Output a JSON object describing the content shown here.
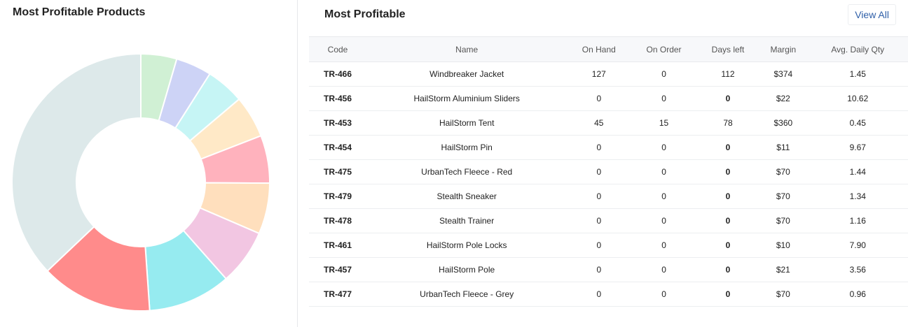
{
  "left": {
    "title": "Most Profitable Products"
  },
  "chart_data": {
    "type": "pie",
    "title": "Most Profitable Products",
    "donut": true,
    "slices": [
      {
        "value": 4.5,
        "color": "#d0f0d4"
      },
      {
        "value": 4.5,
        "color": "#cdd3f6"
      },
      {
        "value": 4.8,
        "color": "#c6f5f5"
      },
      {
        "value": 5.3,
        "color": "#ffe9c7"
      },
      {
        "value": 6.0,
        "color": "#ffb2bd"
      },
      {
        "value": 6.4,
        "color": "#ffdfbd"
      },
      {
        "value": 7.0,
        "color": "#f2c6e2"
      },
      {
        "value": 10.4,
        "color": "#96ebf0"
      },
      {
        "value": 14.0,
        "color": "#ff8b8b"
      },
      {
        "value": 37.1,
        "color": "#dde9ea"
      }
    ]
  },
  "right": {
    "title": "Most Profitable",
    "view_all_label": "View All"
  },
  "table": {
    "columns": [
      "Code",
      "Name",
      "On Hand",
      "On Order",
      "Days left",
      "Margin",
      "Avg. Daily Qty"
    ],
    "rows": [
      [
        "TR-466",
        "Windbreaker Jacket",
        "127",
        "0",
        "112",
        "$374",
        "1.45"
      ],
      [
        "TR-456",
        "HailStorm Aluminium Sliders",
        "0",
        "0",
        "0",
        "$22",
        "10.62"
      ],
      [
        "TR-453",
        "HailStorm Tent",
        "45",
        "15",
        "78",
        "$360",
        "0.45"
      ],
      [
        "TR-454",
        "HailStorm Pin",
        "0",
        "0",
        "0",
        "$11",
        "9.67"
      ],
      [
        "TR-475",
        "UrbanTech Fleece - Red",
        "0",
        "0",
        "0",
        "$70",
        "1.44"
      ],
      [
        "TR-479",
        "Stealth Sneaker",
        "0",
        "0",
        "0",
        "$70",
        "1.34"
      ],
      [
        "TR-478",
        "Stealth Trainer",
        "0",
        "0",
        "0",
        "$70",
        "1.16"
      ],
      [
        "TR-461",
        "HailStorm Pole Locks",
        "0",
        "0",
        "0",
        "$10",
        "7.90"
      ],
      [
        "TR-457",
        "HailStorm Pole",
        "0",
        "0",
        "0",
        "$21",
        "3.56"
      ],
      [
        "TR-477",
        "UrbanTech Fleece - Grey",
        "0",
        "0",
        "0",
        "$70",
        "0.96"
      ]
    ]
  },
  "colors": {
    "zero_days": "#c00000",
    "link": "#2f5fa8"
  }
}
